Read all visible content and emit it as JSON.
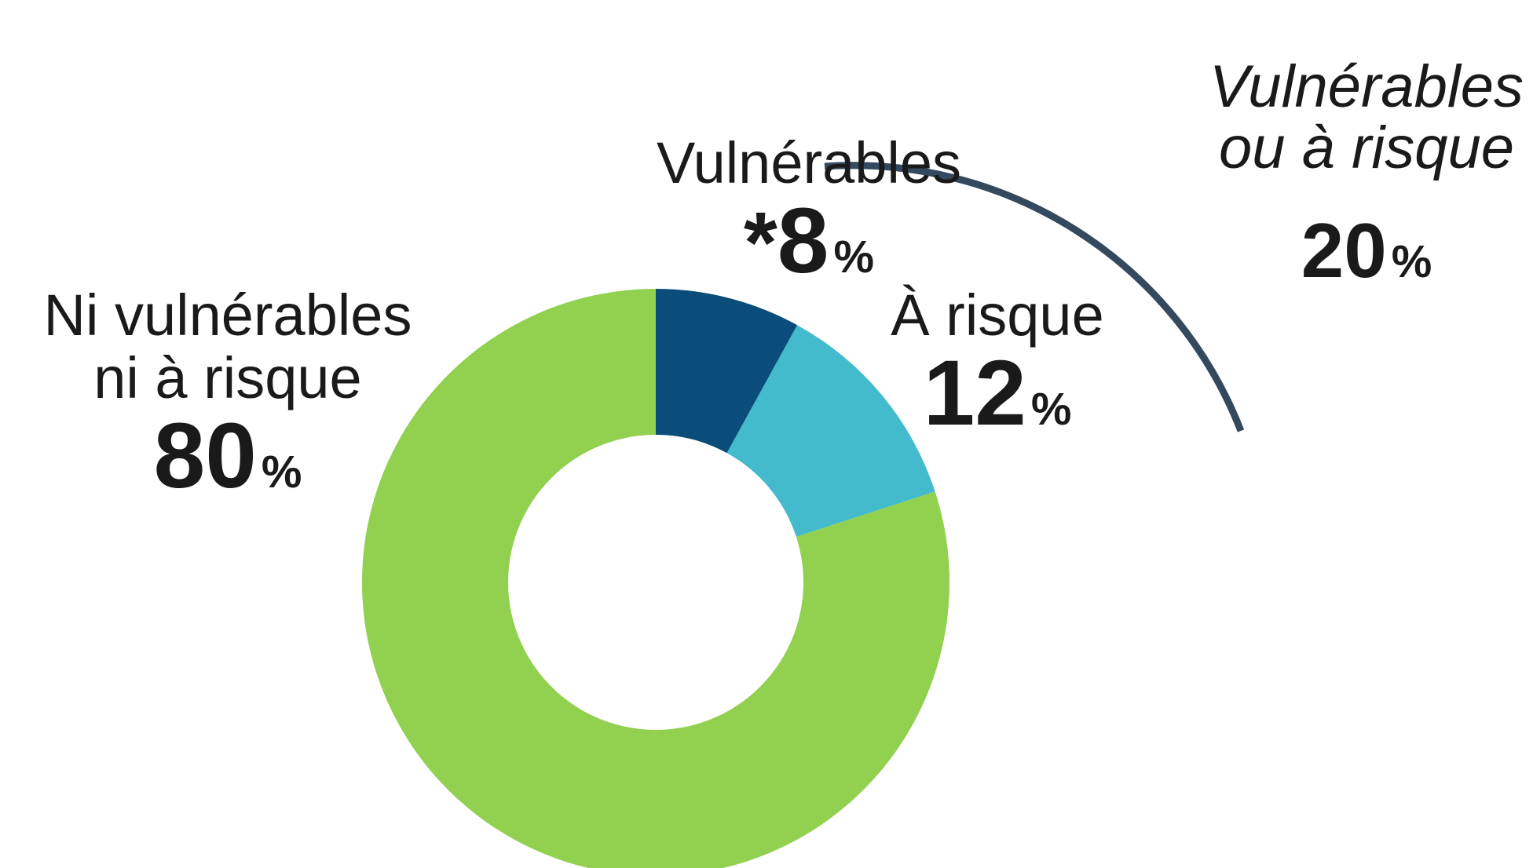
{
  "chart_data": {
    "type": "pie",
    "variant": "donut",
    "series": [
      {
        "name": "Vulnérables",
        "value": 8,
        "value_prefix": "*",
        "unit": "%",
        "color": "#0a4d7a"
      },
      {
        "name": "À risque",
        "value": 12,
        "unit": "%",
        "color": "#43bbcd"
      },
      {
        "name": "Ni vulnérables ni à risque",
        "name_lines": [
          "Ni vulnérables",
          "ni à risque"
        ],
        "value": 80,
        "unit": "%",
        "color": "#92d050"
      }
    ],
    "group_annotation": {
      "lines": [
        "Vulnérables",
        "ou à risque"
      ],
      "value": 20,
      "unit": "%",
      "arc_color": "#34495e"
    },
    "start_angle_deg": 0,
    "direction": "clockwise"
  }
}
